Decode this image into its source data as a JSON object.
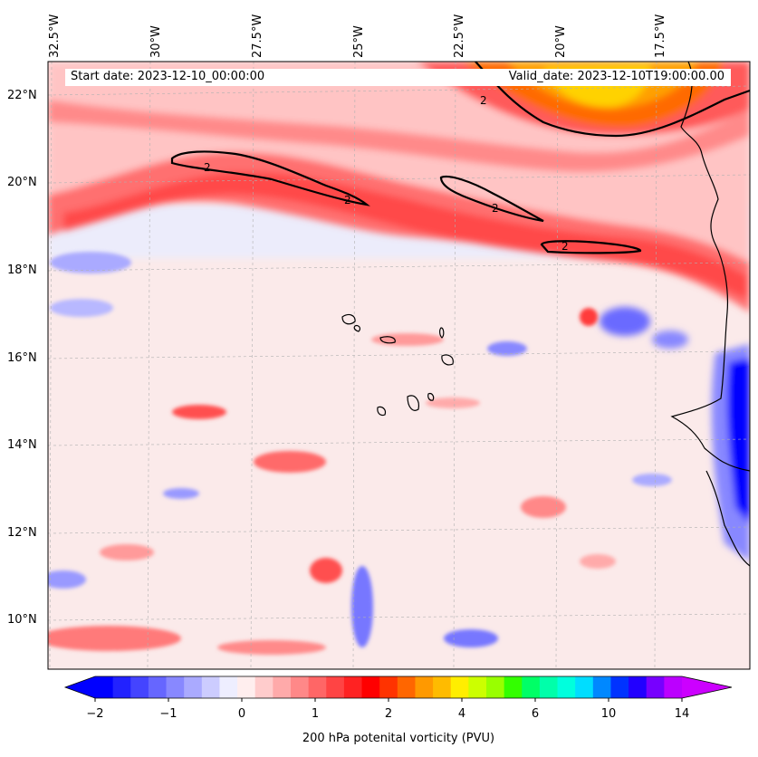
{
  "map": {
    "title_start": "Start date: 2023-12-10_00:00:00",
    "title_valid": "Valid_date: 2023-12-10T19:00:00.00",
    "variable": "200 hPa potenital vorticity (PVU)",
    "contour_label": "2",
    "lon_labels": [
      "32.5°W",
      "30°W",
      "27.5°W",
      "25°W",
      "22.5°W",
      "20°W",
      "17.5°W"
    ],
    "lat_labels": [
      "22°N",
      "20°N",
      "18°N",
      "16°N",
      "14°N",
      "12°N",
      "10°N"
    ]
  },
  "colorbar": {
    "tick_labels": [
      "−2",
      "−1",
      "0",
      "1",
      "2",
      "4",
      "6",
      "10",
      "14"
    ],
    "colors": [
      "#0000ff",
      "#2222ff",
      "#4444ff",
      "#6666ff",
      "#8888ff",
      "#aaaaff",
      "#ccccff",
      "#eeeeff",
      "#ffeeee",
      "#ffcccc",
      "#ffaaaa",
      "#ff8888",
      "#ff6666",
      "#ff4444",
      "#ff2222",
      "#ff0000",
      "#ff3300",
      "#ff6600",
      "#ff9900",
      "#ffbb00",
      "#ffee00",
      "#ccff00",
      "#99ff00",
      "#33ff00",
      "#00ff66",
      "#00ffaa",
      "#00ffdd",
      "#00ddff",
      "#0088ff",
      "#0033ff",
      "#2200ff",
      "#7700ff",
      "#bb00ff"
    ],
    "under_color": "#0000ff",
    "over_color": "#cc00ff"
  },
  "chart_data": {
    "type": "heatmap",
    "title": "200 hPa potenital vorticity (PVU)",
    "subtitle_left": "Start date: 2023-12-10_00:00:00",
    "subtitle_right": "Valid_date: 2023-12-10T19:00:00.00",
    "x_axis": "longitude",
    "y_axis": "latitude",
    "xlim": [
      -33,
      -15
    ],
    "ylim": [
      9,
      23
    ],
    "contour_level": 2,
    "colorbar_ticks": [
      -2,
      -1,
      0,
      1,
      2,
      4,
      6,
      10,
      14
    ],
    "extend": "both"
  }
}
